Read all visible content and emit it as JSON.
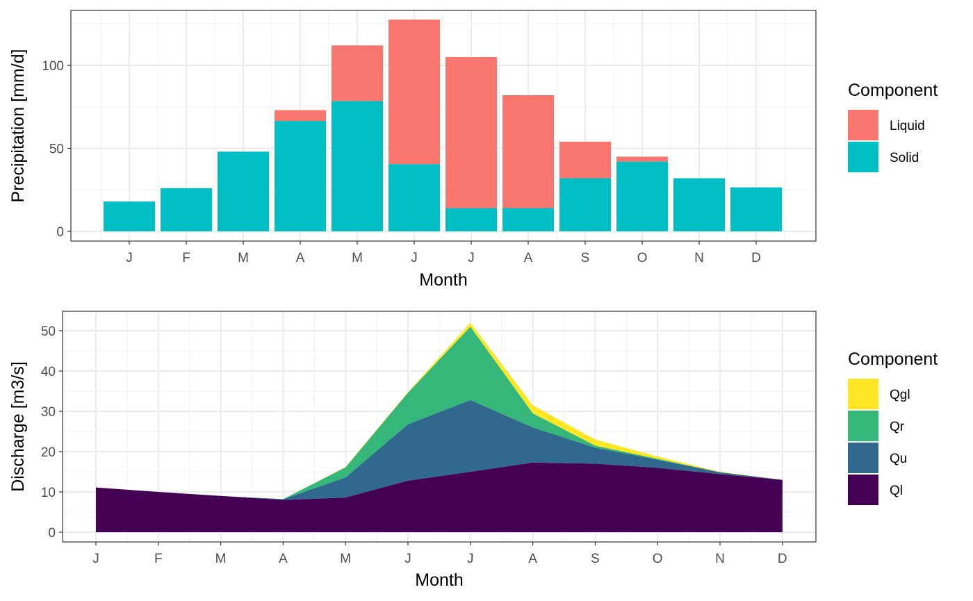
{
  "chart_data": [
    {
      "type": "bar",
      "stacked": true,
      "categories": [
        "J",
        "F",
        "M",
        "A",
        "M",
        "J",
        "J",
        "A",
        "S",
        "O",
        "N",
        "D"
      ],
      "series": [
        {
          "name": "Liquid",
          "color": "#F8766D",
          "values": [
            0,
            0,
            0,
            6.5,
            33.5,
            87,
            91,
            68,
            22,
            3,
            0,
            0
          ]
        },
        {
          "name": "Solid",
          "color": "#00BFC4",
          "values": [
            18,
            26,
            48,
            66.5,
            78.5,
            40.5,
            14,
            14,
            32,
            42,
            32,
            26.5
          ]
        }
      ],
      "xlabel": "Month",
      "ylabel": "Precipitation [mm/d]",
      "ylim": [
        0,
        127
      ],
      "yticks": [
        0,
        50,
        100
      ],
      "grid": true,
      "legend": {
        "title": "Component",
        "position": "right",
        "entries": [
          "Liquid",
          "Solid"
        ]
      }
    },
    {
      "type": "area",
      "stacked": true,
      "x": [
        "J",
        "F",
        "M",
        "A",
        "M",
        "J",
        "J",
        "A",
        "S",
        "O",
        "N",
        "D"
      ],
      "series": [
        {
          "name": "Ql",
          "color": "#440154",
          "values": [
            11.1,
            10,
            9,
            8,
            8.6,
            12.8,
            15,
            17.3,
            17,
            16,
            14.4,
            13
          ]
        },
        {
          "name": "Qu",
          "color": "#31688E",
          "values": [
            0,
            0,
            0,
            0.2,
            5,
            14,
            17.8,
            8.7,
            4,
            2,
            0.5,
            0
          ]
        },
        {
          "name": "Qr",
          "color": "#35B779",
          "values": [
            0,
            0,
            0,
            0,
            2.5,
            7.8,
            18.2,
            3.5,
            0.5,
            0.2,
            0,
            0
          ]
        },
        {
          "name": "Qgl",
          "color": "#FDE725",
          "values": [
            0,
            0,
            0,
            0,
            0.1,
            0.2,
            1.0,
            2.0,
            1.5,
            0.6,
            0.1,
            0
          ]
        }
      ],
      "xlabel": "Month",
      "ylabel": "Discharge [m3/s]",
      "ylim": [
        0,
        54.8
      ],
      "yticks": [
        0,
        10,
        20,
        30,
        40,
        50
      ],
      "grid": true,
      "legend": {
        "title": "Component",
        "position": "right",
        "entries": [
          "Qgl",
          "Qr",
          "Qu",
          "Ql"
        ]
      }
    }
  ]
}
